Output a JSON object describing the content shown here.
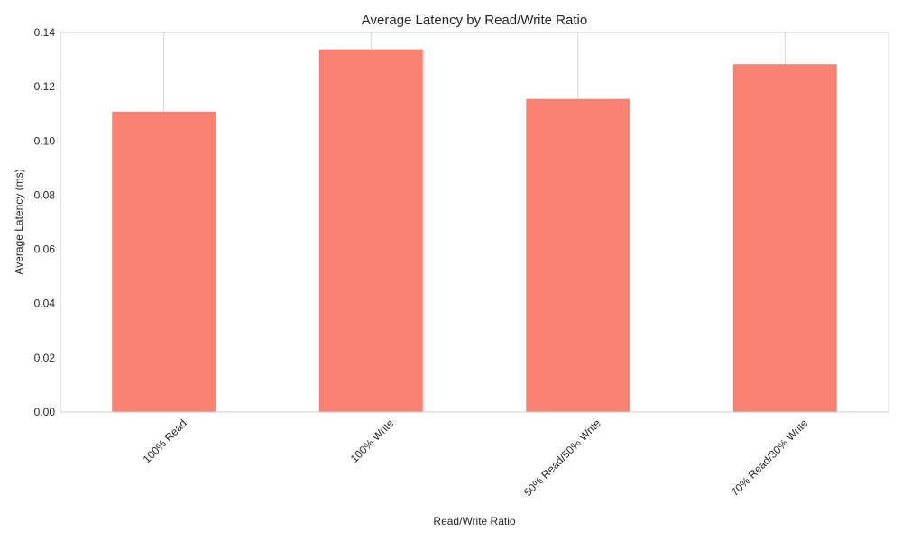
{
  "chart_data": {
    "type": "bar",
    "title": "Average Latency by Read/Write Ratio",
    "xlabel": "Read/Write Ratio",
    "ylabel": "Average Latency (ms)",
    "categories": [
      "100% Read",
      "100% Write",
      "50% Read/50% Write",
      "70% Read/30% Write"
    ],
    "values": [
      0.1108,
      0.1338,
      0.1155,
      0.1283
    ],
    "ylim": [
      0,
      0.14
    ],
    "yticks": [
      "0.00",
      "0.02",
      "0.04",
      "0.06",
      "0.08",
      "0.10",
      "0.12",
      "0.14"
    ],
    "grid": "x-only",
    "bar_color": "#fa8072",
    "legend": "none"
  }
}
